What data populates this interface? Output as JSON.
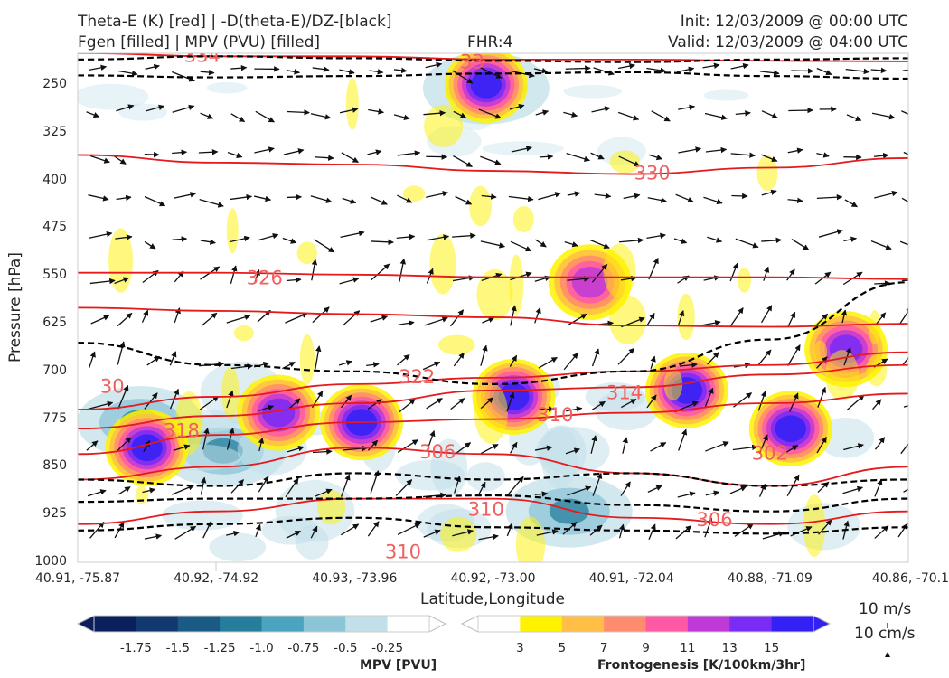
{
  "header": {
    "title_left_1": "Theta-E (K) [red] | -D(theta-E)/DZ-[black]",
    "title_left_2": "Fgen [filled] | MPV (PVU) [filled]",
    "title_center": "FHR:4",
    "title_right_1": "Init: 12/03/2009 @ 00:00 UTC",
    "title_right_2": "Valid: 12/03/2009 @ 04:00 UTC"
  },
  "axes": {
    "ylabel": "Pressure [hPa]",
    "xlabel": "Latitude,Longitude",
    "yticks": [
      "250",
      "325",
      "400",
      "475",
      "550",
      "625",
      "700",
      "775",
      "850",
      "925",
      "1000"
    ],
    "xticks": [
      "40.91, -75.87",
      "40.92, -74.92",
      "40.93, -73.96",
      "40.92, -73.00",
      "40.91, -72.04",
      "40.88, -71.09",
      "40.86, -70.1"
    ]
  },
  "vector_key": {
    "horizontal": "10 m/s",
    "vertical": "10 cm/s"
  },
  "colorbars": {
    "mpv": {
      "label": "MPV [PVU]",
      "ticks": [
        "-1.75",
        "-1.5",
        "-1.25",
        "-1.0",
        "-0.75",
        "-0.5",
        "-0.25"
      ],
      "colors": [
        "#0b1f5c",
        "#12396f",
        "#1a5a85",
        "#267d9c",
        "#4aa3bf",
        "#8cc5d8",
        "#c2e0ea",
        "#ffffff"
      ]
    },
    "fgen": {
      "label": "Frontogenesis [K/100km/3hr]",
      "ticks": [
        "3",
        "5",
        "7",
        "9",
        "11",
        "13",
        "15"
      ],
      "colors": [
        "#ffffff",
        "#fff200",
        "#ffbe45",
        "#ff8c6e",
        "#ff59a6",
        "#c03ad8",
        "#7a2cf6",
        "#3320f5"
      ]
    }
  },
  "chart_data": {
    "type": "cross-section",
    "title": "Theta-E (K) [red] | -D(theta-E)/DZ-[black] / Fgen [filled] | MPV (PVU) [filled]",
    "xlabel": "Latitude,Longitude",
    "ylabel": "Pressure [hPa]",
    "ylim": [
      1000,
      200
    ],
    "x_categories": [
      "40.91, -75.87",
      "40.92, -74.92",
      "40.93, -73.96",
      "40.92, -73.00",
      "40.91, -72.04",
      "40.88, -71.09",
      "40.86, -70.1"
    ],
    "theta_e_contour_labels": [
      {
        "label": "334",
        "x": 0.9,
        "p": 205
      },
      {
        "label": "33",
        "x": 2.85,
        "p": 215
      },
      {
        "label": "330",
        "x": 4.15,
        "p": 390
      },
      {
        "label": "326",
        "x": 1.35,
        "p": 555
      },
      {
        "label": "322",
        "x": 2.45,
        "p": 710
      },
      {
        "label": "314",
        "x": 3.95,
        "p": 735
      },
      {
        "label": "318",
        "x": 0.75,
        "p": 795
      },
      {
        "label": "310",
        "x": 3.45,
        "p": 770
      },
      {
        "label": "306",
        "x": 2.6,
        "p": 828
      },
      {
        "label": "302",
        "x": 5.0,
        "p": 830
      },
      {
        "label": "310",
        "x": 2.95,
        "p": 918
      },
      {
        "label": "306",
        "x": 4.6,
        "p": 935
      },
      {
        "label": "310",
        "x": 2.35,
        "p": 985
      },
      {
        "label": "30",
        "x": 0.25,
        "p": 725
      }
    ],
    "theta_e_lines": [
      {
        "value": 334,
        "p": [
          200,
          205,
          205,
          210,
          210,
          212,
          213
        ]
      },
      {
        "value": 330,
        "p": [
          360,
          372,
          375,
          385,
          390,
          380,
          365
        ]
      },
      {
        "value": 326,
        "p": [
          545,
          545,
          548,
          552,
          552,
          552,
          555
        ]
      },
      {
        "value": 322,
        "p": [
          600,
          605,
          610,
          615,
          628,
          630,
          625
        ]
      },
      {
        "value": 318,
        "p": [
          760,
          740,
          720,
          710,
          700,
          690,
          670
        ]
      },
      {
        "value": 314,
        "p": [
          790,
          770,
          750,
          730,
          725,
          705,
          690
        ]
      },
      {
        "value": 310,
        "p": [
          830,
          800,
          780,
          775,
          765,
          750,
          735
        ]
      },
      {
        "value": 306,
        "p": [
          870,
          850,
          820,
          830,
          860,
          880,
          850
        ]
      },
      {
        "value": 302,
        "p": [
          940,
          920,
          900,
          900,
          930,
          940,
          920
        ]
      }
    ],
    "fgen_maxima": [
      {
        "x": 3.15,
        "p": 740,
        "value": 15
      },
      {
        "x": 4.4,
        "p": 730,
        "value": 15
      },
      {
        "x": 5.15,
        "p": 790,
        "value": 15
      },
      {
        "x": 0.5,
        "p": 820,
        "value": 15
      },
      {
        "x": 1.45,
        "p": 765,
        "value": 13
      },
      {
        "x": 2.05,
        "p": 780,
        "value": 15
      },
      {
        "x": 5.55,
        "p": 665,
        "value": 13
      },
      {
        "x": 2.95,
        "p": 250,
        "value": 15
      },
      {
        "x": 3.7,
        "p": 560,
        "value": 11
      }
    ],
    "mpv_minima": [
      {
        "x": 2.95,
        "p": 255,
        "value": -1.75
      },
      {
        "x": 0.45,
        "p": 780,
        "value": -0.75
      },
      {
        "x": 1.05,
        "p": 825,
        "value": -0.75
      },
      {
        "x": 3.55,
        "p": 920,
        "value": -1.0
      }
    ]
  }
}
